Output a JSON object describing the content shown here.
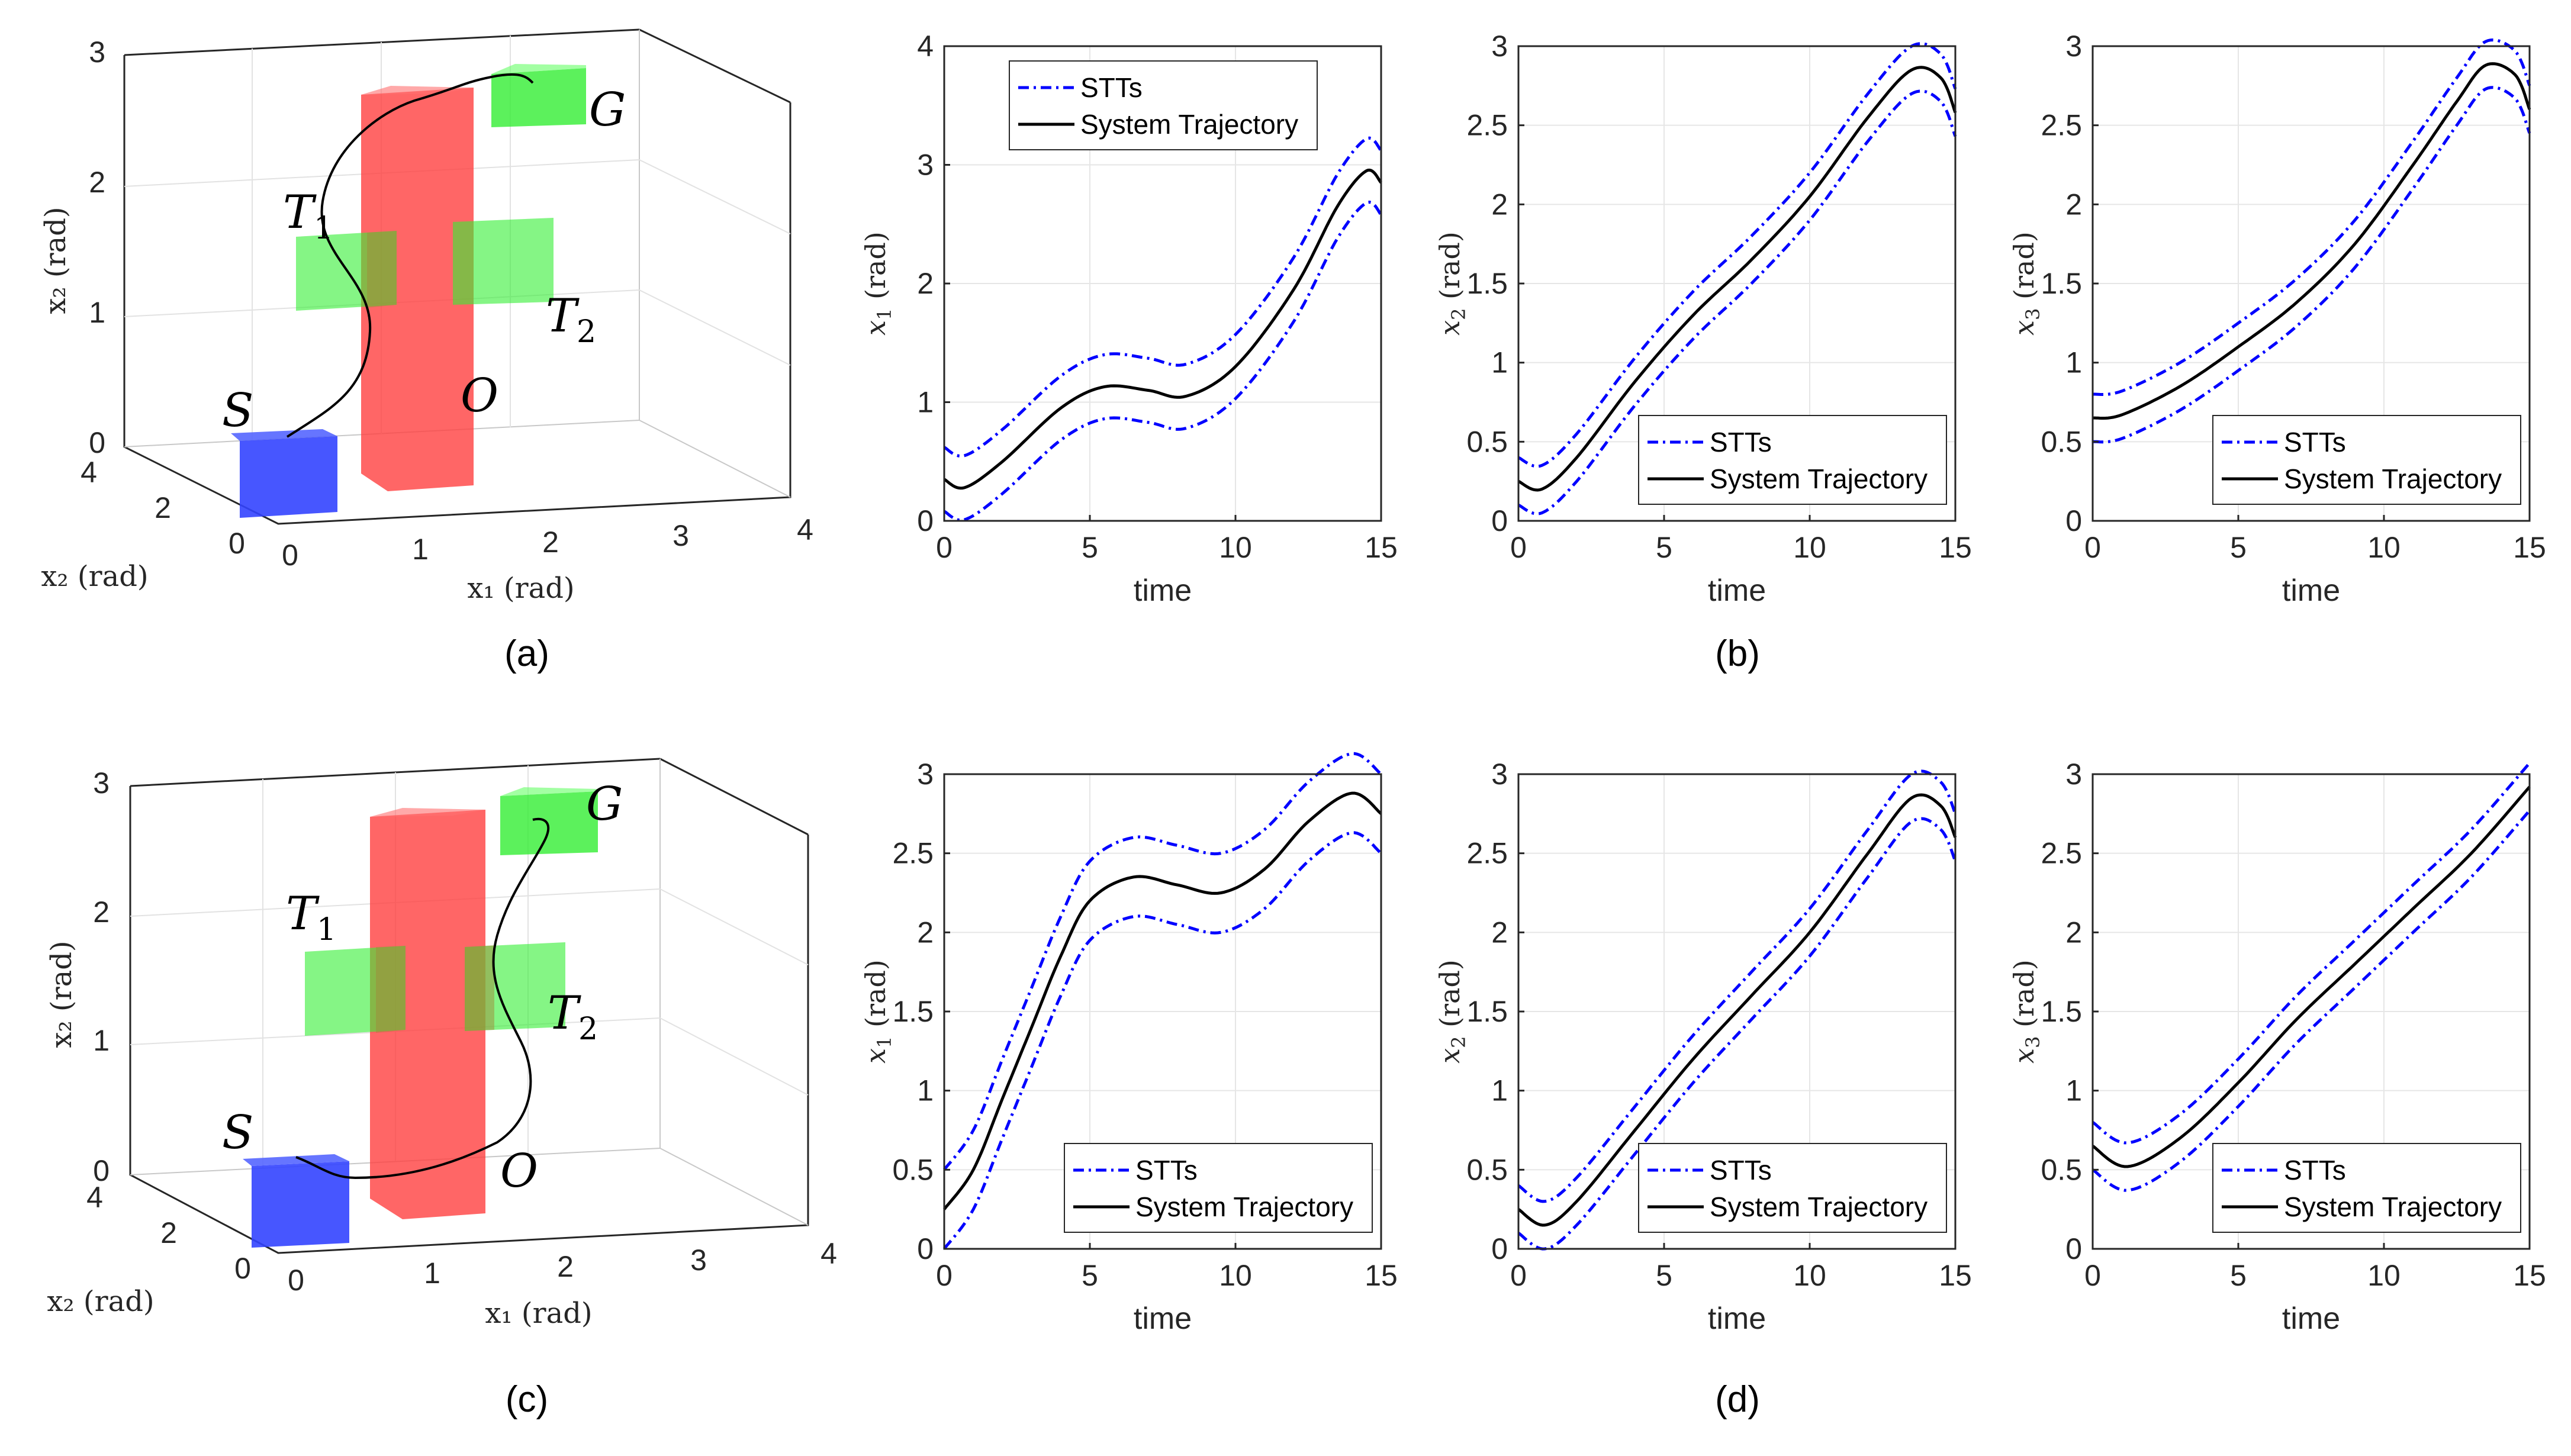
{
  "colors": {
    "stt": "#0000ff",
    "trajectory": "#000000",
    "obstacle": "#ff4040",
    "target": "#33ee33",
    "start": "#2233ff",
    "grid": "#e6e6e6",
    "axis": "#262626"
  },
  "legend": {
    "stt": "STTs",
    "trajectory": "System Trajectory"
  },
  "panel_labels": {
    "a": "(a)",
    "b": "(b)",
    "c": "(c)",
    "d": "(d)"
  },
  "scene_3d": {
    "x_label": "x₁ (rad)",
    "y_label": "x₂ (rad)",
    "z_label": "x₂ (rad)",
    "x_ticks": [
      "0",
      "1",
      "2",
      "3",
      "4"
    ],
    "y_ticks": [
      "0",
      "2",
      "4"
    ],
    "z_ticks": [
      "0",
      "1",
      "2",
      "3"
    ],
    "region_labels": {
      "start": "S",
      "goal": "G",
      "target1": "T",
      "target1_sub": "1",
      "target2": "T",
      "target2_sub": "2",
      "obstacle": "O"
    }
  },
  "chart_data": [
    {
      "id": "b1",
      "type": "line",
      "xlabel": "time",
      "ylabel": "x1 (rad)",
      "ylabel_base": "x",
      "ylabel_sub": "1",
      "ylabel_unit": " (rad)",
      "xlim": [
        0,
        15
      ],
      "ylim": [
        0,
        4
      ],
      "xticks": [
        0,
        5,
        10,
        15
      ],
      "yticks": [
        0,
        1,
        2,
        3,
        4
      ],
      "legend_position": "top-left",
      "x": [
        0,
        0.7,
        2,
        4,
        5.5,
        7,
        8.3,
        10,
        12,
        13.5,
        14.5,
        15
      ],
      "trajectory": [
        0.35,
        0.28,
        0.5,
        0.95,
        1.13,
        1.1,
        1.05,
        1.3,
        1.95,
        2.65,
        2.95,
        2.85
      ],
      "stt_width": 0.27
    },
    {
      "id": "b2",
      "type": "line",
      "xlabel": "time",
      "ylabel": "x2 (rad)",
      "ylabel_base": "x",
      "ylabel_sub": "2",
      "ylabel_unit": " (rad)",
      "xlim": [
        0,
        15
      ],
      "ylim": [
        0,
        3
      ],
      "xticks": [
        0,
        5,
        10,
        15
      ],
      "yticks": [
        0,
        0.5,
        1,
        1.5,
        2,
        2.5,
        3
      ],
      "legend_position": "bottom-right",
      "x": [
        0,
        0.8,
        2,
        4,
        6,
        8,
        10,
        12,
        13.5,
        14.5,
        15
      ],
      "trajectory": [
        0.25,
        0.2,
        0.4,
        0.88,
        1.3,
        1.65,
        2.05,
        2.55,
        2.85,
        2.8,
        2.58
      ],
      "stt_width": 0.15
    },
    {
      "id": "b3",
      "type": "line",
      "xlabel": "time",
      "ylabel": "x3 (rad)",
      "ylabel_base": "x",
      "ylabel_sub": "3",
      "ylabel_unit": " (rad)",
      "xlim": [
        0,
        15
      ],
      "ylim": [
        0,
        3
      ],
      "xticks": [
        0,
        5,
        10,
        15
      ],
      "yticks": [
        0,
        0.5,
        1,
        1.5,
        2,
        2.5,
        3
      ],
      "legend_position": "bottom-right",
      "x": [
        0,
        1,
        3,
        5,
        7,
        9,
        11,
        12.5,
        13.5,
        14.5,
        15
      ],
      "trajectory": [
        0.65,
        0.67,
        0.85,
        1.1,
        1.38,
        1.75,
        2.25,
        2.65,
        2.88,
        2.82,
        2.6
      ],
      "stt_width": 0.15
    },
    {
      "id": "d1",
      "type": "line",
      "xlabel": "time",
      "ylabel": "x1 (rad)",
      "ylabel_base": "x",
      "ylabel_sub": "1",
      "ylabel_unit": " (rad)",
      "xlim": [
        0,
        15
      ],
      "ylim": [
        0,
        3
      ],
      "xticks": [
        0,
        5,
        10,
        15
      ],
      "yticks": [
        0,
        0.5,
        1,
        1.5,
        2,
        2.5,
        3
      ],
      "legend_position": "bottom-right",
      "x": [
        0,
        1,
        2,
        3,
        4,
        5,
        6.5,
        8,
        9.5,
        11,
        12.5,
        14,
        15
      ],
      "trajectory": [
        0.25,
        0.5,
        0.95,
        1.4,
        1.85,
        2.2,
        2.35,
        2.3,
        2.25,
        2.4,
        2.7,
        2.88,
        2.75
      ],
      "stt_width": 0.25
    },
    {
      "id": "d2",
      "type": "line",
      "xlabel": "time",
      "ylabel": "x2 (rad)",
      "ylabel_base": "x",
      "ylabel_sub": "2",
      "ylabel_unit": " (rad)",
      "xlim": [
        0,
        15
      ],
      "ylim": [
        0,
        3
      ],
      "xticks": [
        0,
        5,
        10,
        15
      ],
      "yticks": [
        0,
        0.5,
        1,
        1.5,
        2,
        2.5,
        3
      ],
      "legend_position": "bottom-right",
      "x": [
        0,
        0.9,
        2,
        4,
        6,
        8,
        10,
        12,
        13.5,
        14.5,
        15
      ],
      "trajectory": [
        0.25,
        0.15,
        0.3,
        0.75,
        1.2,
        1.6,
        2.0,
        2.5,
        2.85,
        2.8,
        2.6
      ],
      "stt_width": 0.15
    },
    {
      "id": "d3",
      "type": "line",
      "xlabel": "time",
      "ylabel": "x3 (rad)",
      "ylabel_base": "x",
      "ylabel_sub": "3",
      "ylabel_unit": " (rad)",
      "xlim": [
        0,
        15
      ],
      "ylim": [
        0,
        3
      ],
      "xticks": [
        0,
        5,
        10,
        15
      ],
      "yticks": [
        0,
        0.5,
        1,
        1.5,
        2,
        2.5,
        3
      ],
      "legend_position": "bottom-right",
      "x": [
        0,
        1.2,
        3,
        5,
        7,
        9,
        11,
        13,
        15
      ],
      "trajectory": [
        0.65,
        0.52,
        0.7,
        1.05,
        1.45,
        1.8,
        2.15,
        2.5,
        2.92
      ],
      "stt_width": 0.15
    }
  ]
}
